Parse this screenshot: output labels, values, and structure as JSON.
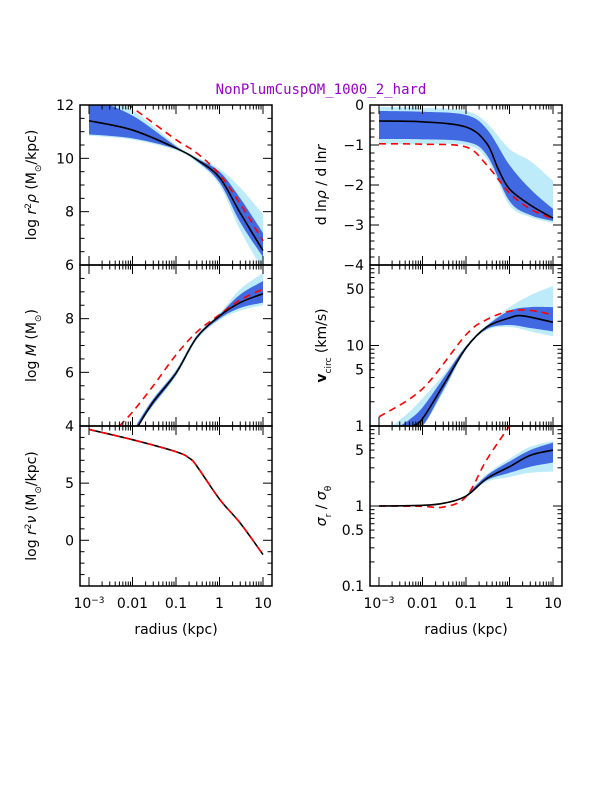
{
  "title": "NonPlumCuspOM_1000_2_hard",
  "title_color": "#9900CC",
  "colors": {
    "band_outer": "#BEEBFA",
    "band_inner": "#4169E1",
    "median": "#000000",
    "true_model": "#FF0000"
  },
  "xlabel": "radius (kpc)",
  "xtick_labels": [
    {
      "value": 0.001,
      "segments": [
        [
          "10",
          ""
        ],
        [
          "−3",
          "sup"
        ]
      ]
    },
    {
      "value": 0.01,
      "segments": [
        [
          "0.01",
          ""
        ]
      ]
    },
    {
      "value": 0.1,
      "segments": [
        [
          "0.1",
          ""
        ]
      ]
    },
    {
      "value": 1,
      "segments": [
        [
          "1",
          ""
        ]
      ]
    },
    {
      "value": 10,
      "segments": [
        [
          "10",
          ""
        ]
      ]
    }
  ],
  "chart_data": [
    {
      "type": "line",
      "panel": "top-left",
      "ylabel": [
        [
          "log ",
          ""
        ],
        [
          "r",
          "i"
        ],
        [
          "2",
          "sup"
        ],
        [
          "ρ",
          "i"
        ],
        [
          " (M",
          ""
        ],
        [
          "⊙",
          "sub"
        ],
        [
          "/kpc)",
          ""
        ]
      ],
      "xlim": [
        0.001,
        10
      ],
      "xscale": "log",
      "ylim": [
        6,
        12
      ],
      "yscale": "linear",
      "yticks": [
        6,
        8,
        10,
        12
      ],
      "bands": [
        {
          "color": "#BEEBFA",
          "x": [
            0.001,
            0.01,
            0.1,
            0.3,
            1,
            3,
            10
          ],
          "lo": [
            10.85,
            10.7,
            10.3,
            9.85,
            9.0,
            7.3,
            5.8
          ],
          "hi": [
            12.5,
            11.8,
            10.5,
            10.05,
            9.6,
            8.9,
            7.9
          ]
        },
        {
          "color": "#4169E1",
          "x": [
            0.001,
            0.01,
            0.1,
            0.3,
            1,
            3,
            10
          ],
          "lo": [
            10.9,
            10.75,
            10.35,
            9.9,
            9.1,
            7.6,
            6.3
          ],
          "hi": [
            12.3,
            11.6,
            10.45,
            10.0,
            9.5,
            8.5,
            7.2
          ]
        }
      ],
      "lines": [
        {
          "color": "#FF0000",
          "dashed": true,
          "x": [
            0.008,
            0.01,
            0.1,
            0.3,
            1,
            3,
            10
          ],
          "y": [
            12,
            11.9,
            10.7,
            10.2,
            9.4,
            8.3,
            6.9
          ]
        },
        {
          "color": "#000000",
          "dashed": false,
          "x": [
            0.001,
            0.01,
            0.1,
            0.3,
            1,
            3,
            10
          ],
          "y": [
            11.41,
            11.06,
            10.38,
            9.95,
            9.28,
            7.95,
            6.54
          ]
        }
      ]
    },
    {
      "type": "line",
      "panel": "top-right",
      "ylabel": [
        [
          "d ln",
          ""
        ],
        [
          "ρ",
          "i"
        ],
        [
          " / d ln",
          ""
        ],
        [
          "r",
          "i"
        ]
      ],
      "xlim": [
        0.001,
        10
      ],
      "xscale": "log",
      "ylim": [
        -4,
        0
      ],
      "yscale": "linear",
      "yticks": [
        -4,
        -3,
        -2,
        -1,
        0
      ],
      "bands": [
        {
          "color": "#BEEBFA",
          "x": [
            0.001,
            0.01,
            0.1,
            0.3,
            1,
            3,
            10
          ],
          "lo": [
            -0.98,
            -0.98,
            -1.0,
            -1.35,
            -2.5,
            -2.8,
            -2.95
          ],
          "hi": [
            -0.05,
            -0.07,
            -0.15,
            -0.45,
            -1.1,
            -1.4,
            -1.9
          ]
        },
        {
          "color": "#4169E1",
          "x": [
            0.001,
            0.01,
            0.1,
            0.3,
            1,
            3,
            10
          ],
          "lo": [
            -0.85,
            -0.86,
            -0.92,
            -1.25,
            -2.4,
            -2.75,
            -2.9
          ],
          "hi": [
            -0.15,
            -0.17,
            -0.25,
            -0.6,
            -1.5,
            -2.1,
            -2.6
          ]
        }
      ],
      "lines": [
        {
          "color": "#FF0000",
          "dashed": true,
          "x": [
            0.001,
            0.01,
            0.1,
            0.3,
            1,
            3,
            10
          ],
          "y": [
            -0.97,
            -0.98,
            -1.05,
            -1.5,
            -2.2,
            -2.6,
            -2.85
          ]
        },
        {
          "color": "#000000",
          "dashed": false,
          "x": [
            0.001,
            0.01,
            0.1,
            0.3,
            0.55,
            1,
            3,
            10
          ],
          "y": [
            -0.4,
            -0.42,
            -0.55,
            -0.96,
            -1.6,
            -2.1,
            -2.5,
            -2.83
          ]
        }
      ]
    },
    {
      "type": "line",
      "panel": "middle-left",
      "ylabel": [
        [
          "log ",
          ""
        ],
        [
          "M",
          "i"
        ],
        [
          " (M",
          ""
        ],
        [
          "⊙",
          "sub"
        ],
        [
          ")",
          ""
        ]
      ],
      "xlim": [
        0.001,
        10
      ],
      "xscale": "log",
      "ylim": [
        4,
        10
      ],
      "yscale": "linear",
      "yticks": [
        4,
        6,
        8
      ],
      "bands": [
        {
          "color": "#BEEBFA",
          "x": [
            0.0125,
            0.03,
            0.1,
            0.3,
            1,
            3,
            10
          ],
          "lo": [
            3.9,
            4.75,
            5.85,
            7.2,
            7.95,
            8.3,
            8.5
          ],
          "hi": [
            4.1,
            5.05,
            6.1,
            7.4,
            8.2,
            9.1,
            9.7
          ]
        },
        {
          "color": "#4169E1",
          "x": [
            0.0125,
            0.03,
            0.1,
            0.3,
            1,
            3,
            10
          ],
          "lo": [
            3.95,
            4.8,
            5.9,
            7.25,
            8.0,
            8.4,
            8.6
          ],
          "hi": [
            4.05,
            5.0,
            6.05,
            7.35,
            8.15,
            8.9,
            9.4
          ]
        }
      ],
      "lines": [
        {
          "color": "#FF0000",
          "dashed": true,
          "x": [
            0.005,
            0.01,
            0.03,
            0.1,
            0.3,
            1,
            3,
            10
          ],
          "y": [
            4,
            4.52,
            5.5,
            6.65,
            7.5,
            8.15,
            8.7,
            9.1
          ]
        },
        {
          "color": "#000000",
          "dashed": false,
          "x": [
            0.0135,
            0.03,
            0.1,
            0.3,
            1,
            3,
            10
          ],
          "y": [
            4,
            4.9,
            5.97,
            7.3,
            8.1,
            8.6,
            8.93
          ]
        }
      ]
    },
    {
      "type": "line",
      "panel": "middle-right",
      "ylabel": [
        [
          "v",
          "b"
        ],
        [
          "circ",
          "sub"
        ],
        [
          " (km/s)",
          ""
        ]
      ],
      "xlim": [
        0.001,
        10
      ],
      "xscale": "log",
      "ylim": [
        1,
        100
      ],
      "yscale": "log",
      "yticks": [
        1,
        5,
        10,
        50
      ],
      "bands": [
        {
          "color": "#BEEBFA",
          "x": [
            0.002,
            0.005,
            0.01,
            0.03,
            0.1,
            0.3,
            1,
            3,
            10
          ],
          "lo": [
            1,
            1,
            1,
            2.6,
            8.8,
            15.5,
            17,
            15,
            13
          ],
          "hi": [
            1,
            1.5,
            2.2,
            4.3,
            10,
            18,
            30,
            42,
            55
          ]
        },
        {
          "color": "#4169E1",
          "x": [
            0.003,
            0.005,
            0.01,
            0.03,
            0.1,
            0.3,
            1,
            3,
            10
          ],
          "lo": [
            1,
            1,
            1,
            2.8,
            9,
            16,
            18,
            16.5,
            15
          ],
          "hi": [
            1,
            1.2,
            1.7,
            3.9,
            9.8,
            17.5,
            27,
            30,
            30
          ]
        }
      ],
      "lines": [
        {
          "color": "#FF0000",
          "dashed": true,
          "x": [
            0.001,
            0.01,
            0.1,
            0.3,
            1,
            3,
            10
          ],
          "y": [
            1.3,
            2.9,
            13.6,
            21,
            26.7,
            27.3,
            24
          ]
        },
        {
          "color": "#000000",
          "dashed": false,
          "x": [
            0.006,
            0.01,
            0.03,
            0.1,
            0.3,
            1,
            2,
            10
          ],
          "y": [
            1,
            1.23,
            3.2,
            9.3,
            17,
            22,
            23.4,
            19.4
          ]
        }
      ]
    },
    {
      "type": "line",
      "panel": "bottom-left",
      "ylabel": [
        [
          "log ",
          ""
        ],
        [
          "r",
          "i"
        ],
        [
          "2",
          "sup"
        ],
        [
          "ν",
          "i"
        ],
        [
          " (M",
          ""
        ],
        [
          "⊙",
          "sub"
        ],
        [
          "/kpc)",
          ""
        ]
      ],
      "xlim": [
        0.001,
        10
      ],
      "xscale": "log",
      "ylim": [
        -4,
        10
      ],
      "yscale": "linear",
      "yticks": [
        0,
        5
      ],
      "bands": [],
      "lines": [
        {
          "color": "#000000",
          "dashed": false,
          "x": [
            0.001,
            0.01,
            0.1,
            0.2,
            0.3,
            1,
            3,
            10
          ],
          "y": [
            9.7,
            8.8,
            7.75,
            7.2,
            6.5,
            3.6,
            1.5,
            -1.25
          ]
        },
        {
          "color": "#FF0000",
          "dashed": true,
          "x": [
            0.001,
            0.01,
            0.1,
            0.2,
            0.3,
            1,
            3,
            10
          ],
          "y": [
            9.7,
            8.8,
            7.75,
            7.2,
            6.5,
            3.6,
            1.5,
            -1.25
          ]
        }
      ]
    },
    {
      "type": "line",
      "panel": "bottom-right",
      "ylabel": [
        [
          "σ",
          "i"
        ],
        [
          "r",
          "sub"
        ],
        [
          " / ",
          ""
        ],
        [
          "σ",
          "i"
        ],
        [
          "θ",
          "sub"
        ]
      ],
      "xlim": [
        0.001,
        10
      ],
      "xscale": "log",
      "ylim": [
        0.1,
        10
      ],
      "yscale": "log",
      "yticks": [
        0.1,
        0.5,
        1,
        5
      ],
      "bands": [
        {
          "color": "#BEEBFA",
          "x": [
            0.1,
            0.3,
            1,
            3,
            10
          ],
          "lo": [
            1.3,
            2.0,
            2.3,
            2.6,
            2.7
          ],
          "hi": [
            1.36,
            2.5,
            3.9,
            5.5,
            6.5
          ]
        },
        {
          "color": "#4169E1",
          "x": [
            0.1,
            0.3,
            1,
            3,
            10
          ],
          "lo": [
            1.31,
            2.1,
            2.6,
            3.1,
            3.5
          ],
          "hi": [
            1.35,
            2.4,
            3.6,
            5.0,
            6.2
          ]
        }
      ],
      "lines": [
        {
          "color": "#FF0000",
          "dashed": true,
          "x": [
            0.001,
            0.01,
            0.03,
            0.1,
            0.3,
            1
          ],
          "y": [
            1,
            0.99,
            0.97,
            1.3,
            3.8,
            10
          ]
        },
        {
          "color": "#000000",
          "dashed": false,
          "x": [
            0.001,
            0.01,
            0.03,
            0.1,
            0.3,
            1,
            3,
            10
          ],
          "y": [
            1,
            1.02,
            1.08,
            1.33,
            2.2,
            3.1,
            4.3,
            5.0
          ]
        }
      ]
    }
  ]
}
